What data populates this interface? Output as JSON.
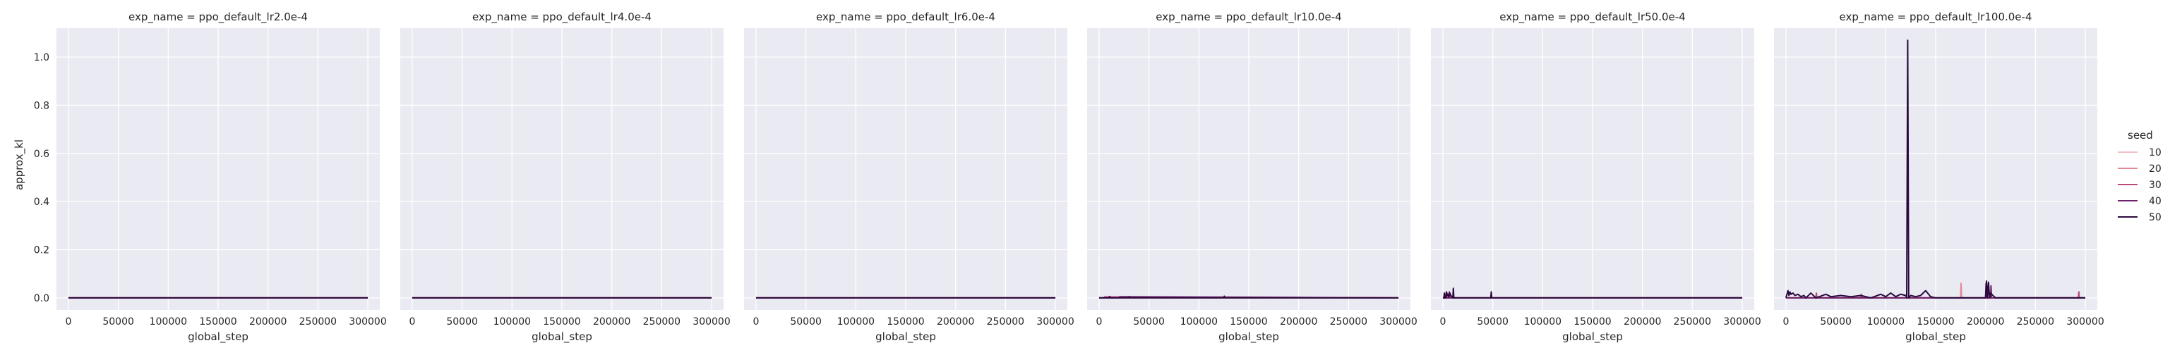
{
  "figure": {
    "ylabel": "approx_kl",
    "xlabel": "global_step",
    "legend_title": "seed"
  },
  "chart_data": {
    "type": "line",
    "xlabel": "global_step",
    "ylabel": "approx_kl",
    "xlim": [
      -12000,
      312000
    ],
    "ylim": [
      -0.05,
      1.12
    ],
    "xticks": [
      0,
      50000,
      100000,
      150000,
      200000,
      250000,
      300000
    ],
    "xtick_labels": [
      "0",
      "50000",
      "100000",
      "150000",
      "200000",
      "250000",
      "300000"
    ],
    "yticks": [
      0.0,
      0.2,
      0.4,
      0.6,
      0.8,
      1.0
    ],
    "ytick_labels": [
      "0.0",
      "0.2",
      "0.4",
      "0.6",
      "0.8",
      "1.0"
    ],
    "grid": true,
    "legend_placement": "right",
    "legend": {
      "title": "seed",
      "entries": [
        {
          "label": "10",
          "color": "#f3c2c4"
        },
        {
          "label": "20",
          "color": "#e28a97"
        },
        {
          "label": "30",
          "color": "#b9487a"
        },
        {
          "label": "40",
          "color": "#6f2068"
        },
        {
          "label": "50",
          "color": "#2a0a3d"
        }
      ]
    },
    "panels": [
      {
        "title": "exp_name = ppo_default_lr2.0e-4",
        "series": [
          {
            "name": "10",
            "x": [
              0,
              300000
            ],
            "y": [
              0.0,
              0.0
            ]
          },
          {
            "name": "20",
            "x": [
              0,
              300000
            ],
            "y": [
              0.0,
              0.0
            ]
          },
          {
            "name": "30",
            "x": [
              0,
              300000
            ],
            "y": [
              0.0,
              0.0
            ]
          },
          {
            "name": "40",
            "x": [
              0,
              300000
            ],
            "y": [
              0.0,
              0.0
            ]
          },
          {
            "name": "50",
            "x": [
              0,
              300000
            ],
            "y": [
              0.0,
              0.0
            ]
          }
        ]
      },
      {
        "title": "exp_name = ppo_default_lr4.0e-4",
        "series": [
          {
            "name": "10",
            "x": [
              0,
              300000
            ],
            "y": [
              0.0,
              0.0
            ]
          },
          {
            "name": "20",
            "x": [
              0,
              300000
            ],
            "y": [
              0.0,
              0.0
            ]
          },
          {
            "name": "30",
            "x": [
              0,
              300000
            ],
            "y": [
              0.0,
              0.0
            ]
          },
          {
            "name": "40",
            "x": [
              0,
              300000
            ],
            "y": [
              0.0,
              0.0
            ]
          },
          {
            "name": "50",
            "x": [
              0,
              300000
            ],
            "y": [
              0.0,
              0.0
            ]
          }
        ]
      },
      {
        "title": "exp_name = ppo_default_lr6.0e-4",
        "series": [
          {
            "name": "10",
            "x": [
              0,
              300000
            ],
            "y": [
              0.0,
              0.0
            ]
          },
          {
            "name": "20",
            "x": [
              0,
              300000
            ],
            "y": [
              0.0,
              0.0
            ]
          },
          {
            "name": "30",
            "x": [
              0,
              300000
            ],
            "y": [
              0.0,
              0.0
            ]
          },
          {
            "name": "40",
            "x": [
              0,
              300000
            ],
            "y": [
              0.0,
              0.0
            ]
          },
          {
            "name": "50",
            "x": [
              0,
              300000
            ],
            "y": [
              0.0,
              0.0
            ]
          }
        ]
      },
      {
        "title": "exp_name = ppo_default_lr10.0e-4",
        "series": [
          {
            "name": "10",
            "x": [
              0,
              300000
            ],
            "y": [
              0.0,
              0.0
            ]
          },
          {
            "name": "20",
            "x": [
              0,
              300000
            ],
            "y": [
              0.0,
              0.0
            ]
          },
          {
            "name": "30",
            "x": [
              0,
              5000,
              5500,
              300000
            ],
            "y": [
              0.0,
              0.0,
              0.004,
              0.0
            ]
          },
          {
            "name": "40",
            "x": [
              0,
              20000,
              20500,
              300000
            ],
            "y": [
              0.0,
              0.0,
              0.005,
              0.0
            ]
          },
          {
            "name": "50",
            "x": [
              0,
              10000,
              10500,
              11000,
              30000,
              30500,
              31000,
              125000,
              125500,
              126000,
              300000
            ],
            "y": [
              0.0,
              0.0,
              0.006,
              0.0,
              0.0,
              0.005,
              0.0,
              0.0,
              0.007,
              0.0,
              0.0
            ]
          }
        ]
      },
      {
        "title": "exp_name = ppo_default_lr50.0e-4",
        "series": [
          {
            "name": "10",
            "x": [
              0,
              300000
            ],
            "y": [
              0.0,
              0.0
            ]
          },
          {
            "name": "20",
            "x": [
              0,
              2000,
              2500,
              3000,
              300000
            ],
            "y": [
              0.0,
              0.0,
              0.015,
              0.0,
              0.0
            ]
          },
          {
            "name": "30",
            "x": [
              0,
              4000,
              4500,
              5000,
              300000
            ],
            "y": [
              0.0,
              0.0,
              0.02,
              0.0,
              0.0
            ]
          },
          {
            "name": "40",
            "x": [
              0,
              6000,
              6500,
              7000,
              300000
            ],
            "y": [
              0.0,
              0.0,
              0.025,
              0.0,
              0.0
            ]
          },
          {
            "name": "50",
            "x": [
              0,
              1000,
              1500,
              2000,
              3000,
              3500,
              4000,
              5000,
              6000,
              7000,
              8000,
              9000,
              10000,
              10500,
              11000,
              12000,
              48000,
              48500,
              49000,
              300000
            ],
            "y": [
              0.0,
              0.0,
              0.02,
              0.0,
              0.0,
              0.025,
              0.01,
              0.015,
              0.005,
              0.02,
              0.01,
              0.005,
              0.0,
              0.04,
              0.0,
              0.0,
              0.0,
              0.025,
              0.0,
              0.0
            ]
          }
        ]
      },
      {
        "title": "exp_name = ppo_default_lr100.0e-4",
        "series": [
          {
            "name": "10",
            "x": [
              0,
              300000
            ],
            "y": [
              0.0,
              0.0
            ]
          },
          {
            "name": "20",
            "x": [
              0,
              175000,
              175500,
              176000,
              300000
            ],
            "y": [
              0.0,
              0.0,
              0.06,
              0.0,
              0.0
            ]
          },
          {
            "name": "30",
            "x": [
              0,
              30000,
              30500,
              31000,
              75000,
              75500,
              76000,
              293000,
              293500,
              294000,
              300000
            ],
            "y": [
              0.0,
              0.0,
              0.02,
              0.0,
              0.0,
              0.015,
              0.0,
              0.0,
              0.025,
              0.0,
              0.0
            ]
          },
          {
            "name": "40",
            "x": [
              0,
              200000,
              200500,
              201000,
              205000,
              205500,
              206000,
              300000
            ],
            "y": [
              0.0,
              0.0,
              0.06,
              0.0,
              0.0,
              0.05,
              0.0,
              0.0
            ]
          },
          {
            "name": "50",
            "x": [
              0,
              2000,
              3000,
              4000,
              5000,
              7000,
              9000,
              12000,
              15000,
              18000,
              20000,
              25000,
              30000,
              40000,
              45000,
              55000,
              65000,
              75000,
              85000,
              95000,
              100000,
              105000,
              110000,
              115000,
              120000,
              121000,
              122000,
              123000,
              125000,
              130000,
              135000,
              140000,
              145000,
              150000,
              180000,
              200000,
              201000,
              202000,
              203000,
              204000,
              205000,
              210000,
              300000
            ],
            "y": [
              0.0,
              0.03,
              0.01,
              0.025,
              0.015,
              0.02,
              0.01,
              0.015,
              0.005,
              0.01,
              0.0,
              0.02,
              0.0,
              0.015,
              0.005,
              0.01,
              0.005,
              0.01,
              0.0,
              0.015,
              0.005,
              0.02,
              0.005,
              0.015,
              0.01,
              0.0,
              1.07,
              0.0,
              0.01,
              0.005,
              0.01,
              0.03,
              0.005,
              0.0,
              0.0,
              0.0,
              0.07,
              0.0,
              0.065,
              0.0,
              0.02,
              0.0,
              0.0
            ]
          }
        ]
      }
    ]
  }
}
